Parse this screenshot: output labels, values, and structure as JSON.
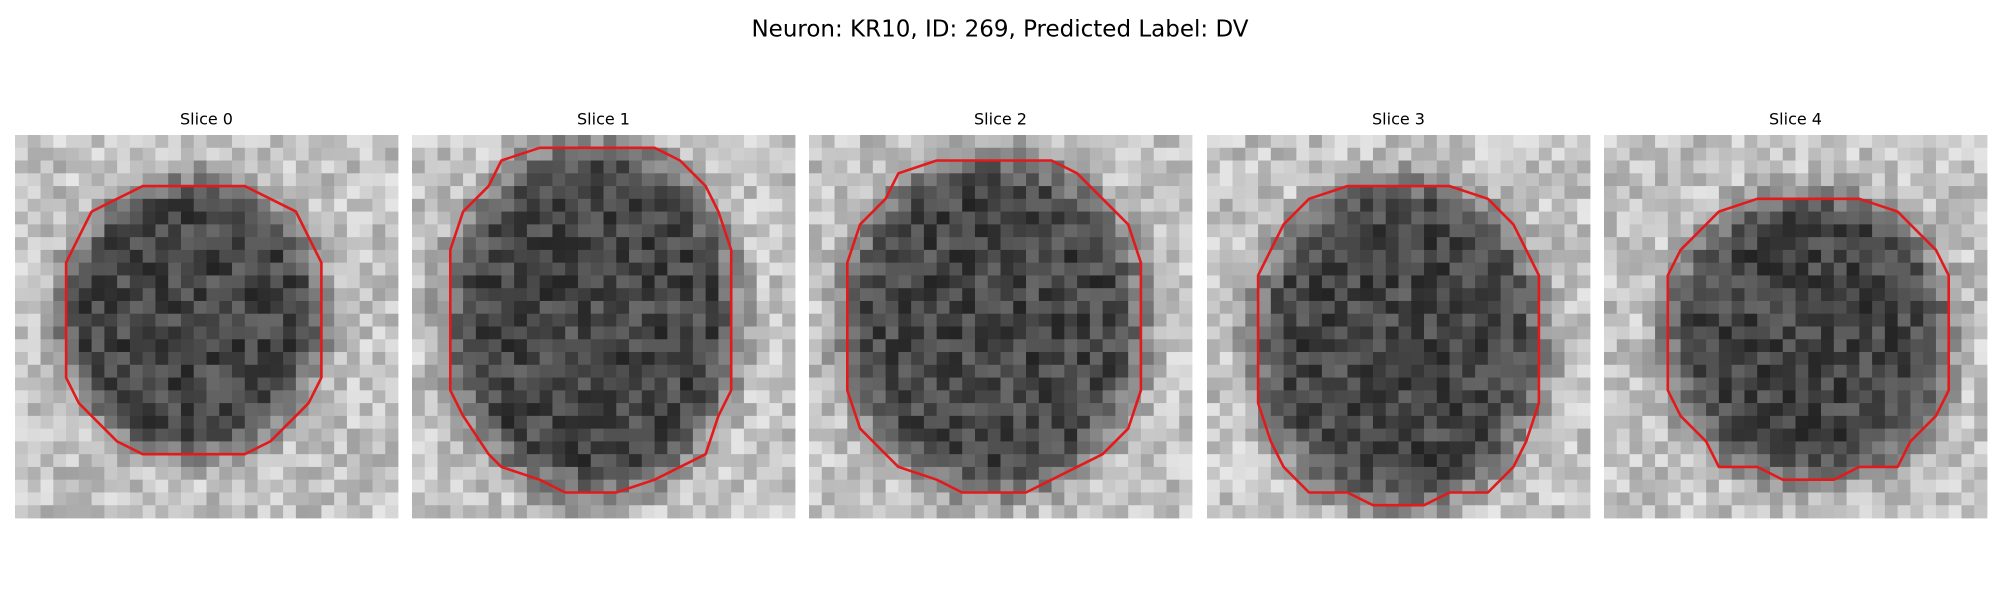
{
  "title": "Neuron: KR10, ID: 269, Predicted Label: DV",
  "panels": [
    {
      "title": "Slice 0"
    },
    {
      "title": "Slice 1"
    },
    {
      "title": "Slice 2"
    },
    {
      "title": "Slice 3"
    },
    {
      "title": "Slice 4"
    }
  ]
}
